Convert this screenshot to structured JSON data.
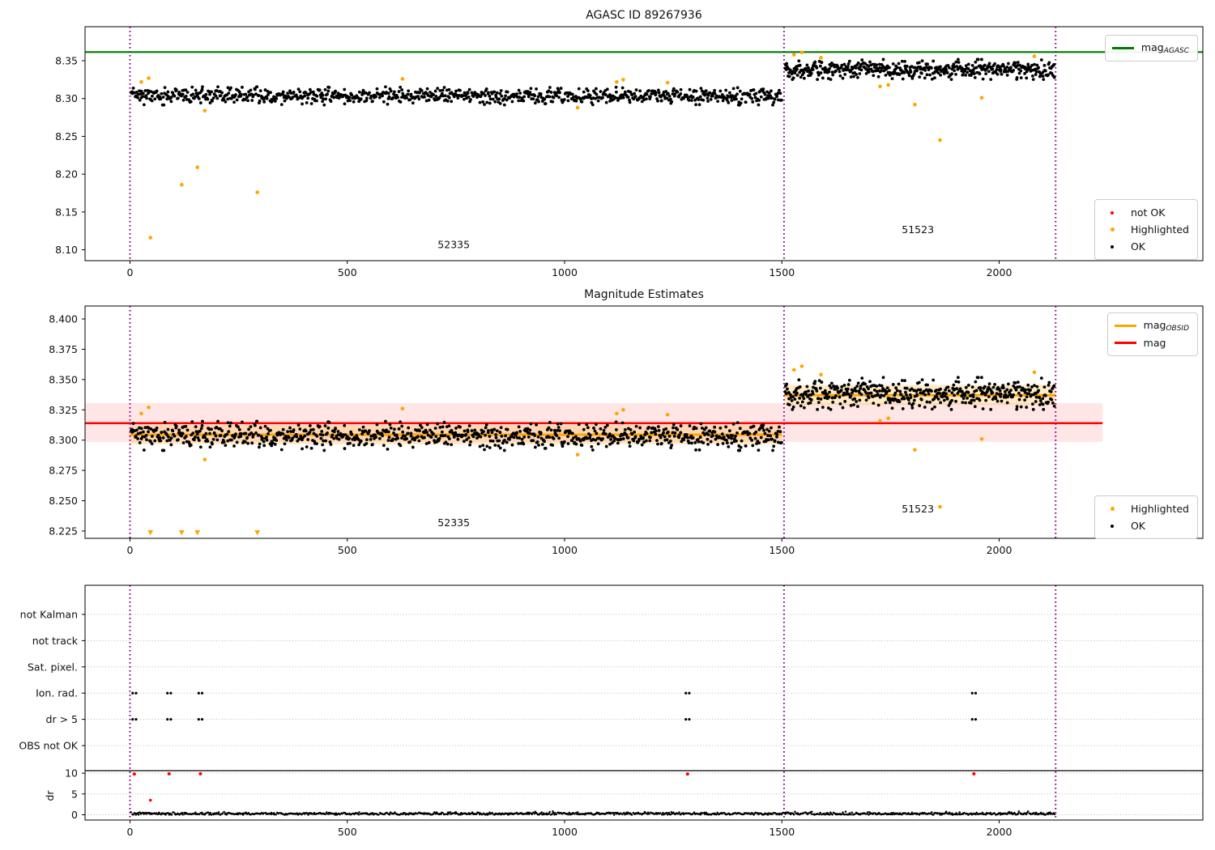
{
  "colors": {
    "green": "#007a00",
    "red": "#ff0000",
    "orange": "#ffa500",
    "black": "#000000",
    "purple": "#8e008e",
    "pink_band": "rgba(255,60,60,0.13)",
    "orange_band": "rgba(255,165,0,0.22)",
    "grid": "#b8b8b8",
    "frame": "#000000"
  },
  "chart_data": [
    {
      "type": "scatter",
      "title": "AGASC ID 89267936",
      "xlim": [
        -103,
        2469
      ],
      "ylim": [
        8.085,
        8.395
      ],
      "xticks": [
        "0",
        "500",
        "1000",
        "1500",
        "2000"
      ],
      "xtick_values": [
        0,
        500,
        1000,
        1500,
        2000
      ],
      "yticks": [
        "8.10",
        "8.15",
        "8.20",
        "8.25",
        "8.30",
        "8.35"
      ],
      "ytick_values": [
        8.1,
        8.15,
        8.2,
        8.25,
        8.3,
        8.35
      ],
      "mag_agasc_line": 8.3615,
      "vlines": [
        0,
        1505,
        2130
      ],
      "annotations": [
        {
          "text": "52335",
          "x": 745,
          "y": 8.102
        },
        {
          "text": "51523",
          "x": 1813,
          "y": 8.122
        }
      ],
      "legend_upper": [
        {
          "type": "line",
          "color_key": "green",
          "label": "mag",
          "sub": "AGASC"
        }
      ],
      "legend_lower": [
        {
          "type": "dot",
          "color_key": "red",
          "label": "not OK",
          "size": 4
        },
        {
          "type": "dot",
          "color_key": "orange",
          "label": "Highlighted",
          "size": 5
        },
        {
          "type": "dot",
          "color_key": "black",
          "label": "OK",
          "size": 4
        }
      ]
    },
    {
      "type": "scatter",
      "title": "Magnitude Estimates",
      "xlim": [
        -103,
        2469
      ],
      "ylim": [
        8.219,
        8.4105
      ],
      "xticks": [
        "0",
        "500",
        "1000",
        "1500",
        "2000"
      ],
      "xtick_values": [
        0,
        500,
        1000,
        1500,
        2000
      ],
      "yticks": [
        "8.225",
        "8.250",
        "8.275",
        "8.300",
        "8.325",
        "8.350",
        "8.375",
        "8.400"
      ],
      "ytick_values": [
        8.225,
        8.25,
        8.275,
        8.3,
        8.325,
        8.35,
        8.375,
        8.4
      ],
      "mag_line": {
        "y": 8.314,
        "band": [
          8.2985,
          8.3305
        ],
        "x_start_px_edge": true,
        "x_end": 2238
      },
      "obsid_segments": [
        {
          "obsid": "52335",
          "x0": 0,
          "x1": 1500,
          "y": 8.3045,
          "band": [
            8.2965,
            8.3125
          ]
        },
        {
          "obsid": "51523",
          "x0": 1505,
          "x1": 2130,
          "y": 8.337,
          "band": [
            8.329,
            8.3455
          ]
        }
      ],
      "clip_low": 8.2215,
      "vlines": [
        0,
        1505,
        2130
      ],
      "annotations": [
        {
          "text": "52335",
          "x": 745,
          "y": 8.229
        },
        {
          "text": "51523",
          "x": 1813,
          "y": 8.2405
        }
      ],
      "legend_upper": [
        {
          "type": "line",
          "color_key": "orange",
          "label": "mag",
          "sub": "OBSID"
        },
        {
          "type": "line",
          "color_key": "red",
          "label": "mag",
          "sub": ""
        }
      ],
      "legend_lower": [
        {
          "type": "dot",
          "color_key": "orange",
          "label": "Highlighted",
          "size": 5
        },
        {
          "type": "dot",
          "color_key": "black",
          "label": "OK",
          "size": 4
        }
      ]
    },
    {
      "type": "flags",
      "rows": [
        "not Kalman",
        "not track",
        "Sat. pixel.",
        "Ion. rad.",
        "dr > 5",
        "OBS not OK"
      ],
      "dr_ticks": [
        "10",
        "5",
        "0"
      ],
      "dr_tick_values": [
        10,
        5,
        0
      ],
      "ylabel": "dr",
      "xticks": [
        "0",
        "500",
        "1000",
        "1500",
        "2000"
      ],
      "xtick_values": [
        0,
        500,
        1000,
        1500,
        2000
      ],
      "vlines": [
        0,
        1505,
        2130
      ],
      "separator_dr": 10.6,
      "events": {
        "x": [
          10,
          90,
          162,
          1283,
          1942
        ],
        "rows_hit": [
          "Ion. rad.",
          "dr > 5"
        ],
        "dr": [
          9.8,
          9.85,
          9.85,
          9.8,
          9.85
        ]
      },
      "extra_red": [
        {
          "x": 47,
          "dr": 3.5
        }
      ],
      "dr_cluster": {
        "n": 1000,
        "x_min": 2,
        "x_max": 2128,
        "mean": 0.27,
        "std": 0.16,
        "seed": 7
      }
    }
  ],
  "observations": {
    "clusters": [
      {
        "obsid": "52335",
        "n": 920,
        "x_min": 2,
        "x_max": 1500,
        "mean": 8.3035,
        "std": 0.005,
        "seed": 11,
        "lead_n": 14,
        "lead_boost": 0.0088
      },
      {
        "obsid": "51523",
        "n": 470,
        "x_min": 1507,
        "x_max": 2128,
        "mean": 8.3385,
        "std": 0.0055,
        "seed": 22,
        "lead_n": 0,
        "lead_boost": 0
      }
    ],
    "highlighted": [
      [
        26,
        8.322
      ],
      [
        43,
        8.327
      ],
      [
        47,
        8.116
      ],
      [
        119,
        8.186
      ],
      [
        155,
        8.209
      ],
      [
        172,
        8.284
      ],
      [
        293,
        8.176
      ],
      [
        627,
        8.326
      ],
      [
        1030,
        8.288
      ],
      [
        1120,
        8.322
      ],
      [
        1135,
        8.325
      ],
      [
        1237,
        8.321
      ],
      [
        1528,
        8.358
      ],
      [
        1546,
        8.361
      ],
      [
        1590,
        8.354
      ],
      [
        1726,
        8.316
      ],
      [
        1745,
        8.318
      ],
      [
        1806,
        8.292
      ],
      [
        1864,
        8.245
      ],
      [
        1960,
        8.301
      ],
      [
        2081,
        8.356
      ]
    ],
    "not_ok": []
  }
}
